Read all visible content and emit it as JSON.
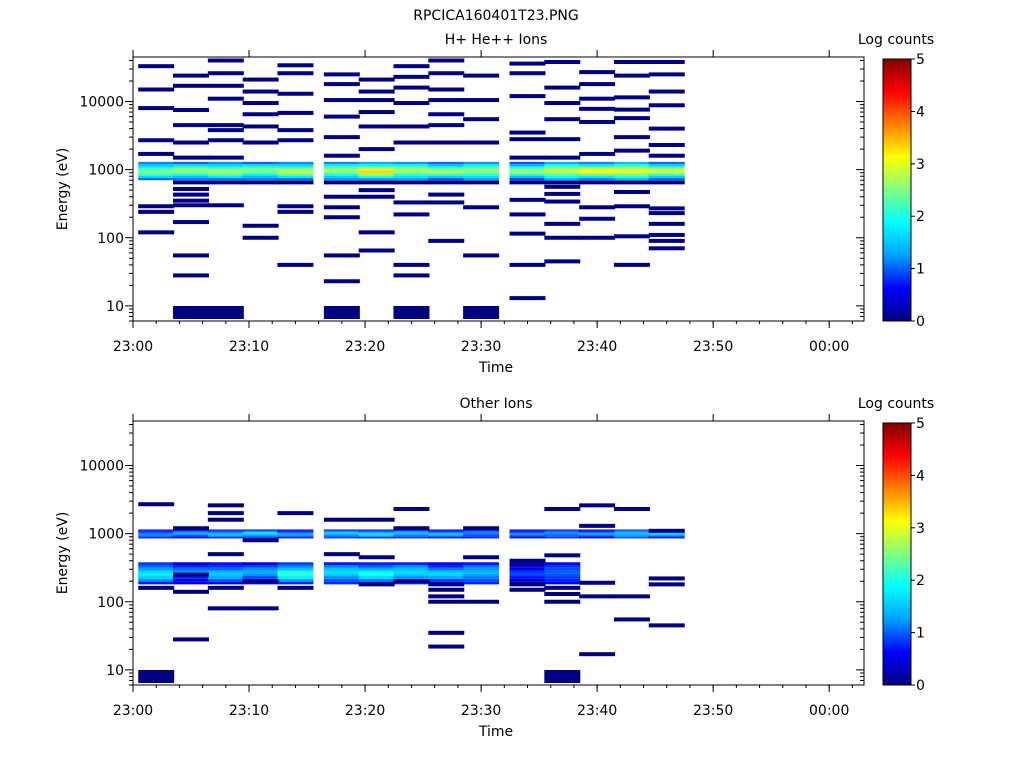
{
  "figure_title": "RPCICA160401T23.PNG",
  "colormap": [
    "#000080",
    "#0000ff",
    "#00a0ff",
    "#00ffff",
    "#80ff80",
    "#ffff00",
    "#ff8000",
    "#ff0000",
    "#800000"
  ],
  "chart_data": [
    {
      "type": "heatmap",
      "title": "H+ He++ Ions",
      "xlabel": "Time",
      "ylabel": "Energy (eV)",
      "x_axis": {
        "start": "23:00",
        "end": "00:03",
        "ticks": [
          "23:00",
          "23:10",
          "23:20",
          "23:30",
          "23:40",
          "23:50",
          "00:00"
        ]
      },
      "y_axis": {
        "scale": "log",
        "range": [
          6,
          45000
        ],
        "tick_labels": [
          "10",
          "100",
          "1000",
          "10000"
        ]
      },
      "colorbar": {
        "label": "Log counts",
        "range": [
          0,
          5
        ],
        "tick_labels": [
          "0",
          "1",
          "2",
          "3",
          "4",
          "5"
        ]
      },
      "time_bins": [
        "23:02",
        "23:05",
        "23:08",
        "23:11",
        "23:14",
        "23:18",
        "23:21",
        "23:24",
        "23:27",
        "23:30",
        "23:34",
        "23:37",
        "23:40",
        "23:43",
        "23:46",
        "23:49"
      ],
      "band": [
        {
          "e1": 700,
          "e2": 1300,
          "values": [
            2.7,
            2.8,
            2.9,
            2.7,
            3.0,
            2.9,
            3.5,
            3.0,
            2.8,
            2.9,
            2.7,
            3.2,
            3.3,
            3.4,
            3.0
          ]
        }
      ],
      "points": [
        {
          "t": 0,
          "e": [
            33000,
            15000,
            8000,
            2700,
            1700,
            290,
            240,
            120
          ]
        },
        {
          "t": 1,
          "e": [
            24000,
            17000,
            7500,
            4500,
            2500,
            1500,
            650,
            520,
            430,
            350,
            300,
            170,
            55,
            28,
            8
          ]
        },
        {
          "t": 2,
          "e": [
            40000,
            26000,
            17000,
            11000,
            4500,
            3800,
            2700,
            1500,
            650,
            300,
            8
          ]
        },
        {
          "t": 3,
          "e": [
            21000,
            14000,
            9500,
            6500,
            4300,
            2500,
            650,
            150,
            100
          ]
        },
        {
          "t": 4,
          "e": [
            34000,
            26000,
            13000,
            6800,
            3800,
            2700,
            650,
            290,
            240,
            40
          ]
        },
        {
          "t": 5,
          "e": [
            25000,
            18000,
            10500,
            6000,
            3000,
            1600,
            650,
            400,
            280,
            200,
            55,
            23,
            8
          ]
        },
        {
          "t": 6,
          "e": [
            21000,
            14000,
            10500,
            7000,
            4300,
            2000,
            650,
            500,
            400,
            120,
            65
          ]
        },
        {
          "t": 7,
          "e": [
            33000,
            23000,
            16000,
            9500,
            4300,
            2500,
            650,
            330,
            220,
            40,
            28,
            8
          ]
        },
        {
          "t": 8,
          "e": [
            40000,
            26000,
            15000,
            10500,
            6500,
            4500,
            2500,
            650,
            430,
            330,
            90
          ]
        },
        {
          "t": 9,
          "e": [
            24000,
            10500,
            5500,
            2500,
            650,
            280,
            55,
            8
          ]
        },
        {
          "t": 10,
          "e": [
            36000,
            26000,
            12000,
            3500,
            2800,
            1500,
            650,
            360,
            220,
            115,
            40,
            13
          ]
        },
        {
          "t": 11,
          "e": [
            38000,
            16000,
            9500,
            5500,
            2800,
            1500,
            650,
            560,
            440,
            340,
            160,
            100,
            45
          ]
        },
        {
          "t": 12,
          "e": [
            27000,
            18000,
            11000,
            7800,
            5000,
            1700,
            650,
            280,
            190,
            100
          ]
        },
        {
          "t": 13,
          "e": [
            38000,
            24000,
            11500,
            7600,
            5700,
            3000,
            1900,
            650,
            470,
            290,
            105,
            40
          ]
        },
        {
          "t": 14,
          "e": [
            38000,
            25000,
            14000,
            8800,
            4000,
            2300,
            1600,
            650,
            270,
            230,
            160,
            110,
            90,
            70
          ]
        }
      ]
    },
    {
      "type": "heatmap",
      "title": "Other Ions",
      "xlabel": "Time",
      "ylabel": "Energy (eV)",
      "x_axis": {
        "start": "23:00",
        "end": "00:03",
        "ticks": [
          "23:00",
          "23:10",
          "23:20",
          "23:30",
          "23:40",
          "23:50",
          "00:00"
        ]
      },
      "y_axis": {
        "scale": "log",
        "range": [
          6,
          45000
        ],
        "tick_labels": [
          "10",
          "100",
          "1000",
          "10000"
        ]
      },
      "colorbar": {
        "label": "Log counts",
        "range": [
          0,
          5
        ],
        "tick_labels": [
          "0",
          "1",
          "2",
          "3",
          "4",
          "5"
        ]
      },
      "time_bins": [
        "23:02",
        "23:05",
        "23:08",
        "23:11",
        "23:14",
        "23:18",
        "23:21",
        "23:24",
        "23:27",
        "23:30",
        "23:34",
        "23:37",
        "23:40",
        "23:43",
        "23:46",
        "23:49"
      ],
      "band": [
        {
          "e1": 850,
          "e2": 1150,
          "values": [
            1.3,
            1.4,
            1.6,
            1.8,
            1.4,
            1.7,
            1.8,
            1.6,
            1.5,
            1.3,
            1.2,
            1.4,
            1.3,
            1.7,
            1.6
          ]
        },
        {
          "e1": 180,
          "e2": 380,
          "values": [
            1.9,
            1.2,
            1.6,
            1.4,
            2.2,
            1.8,
            2.0,
            1.8,
            1.6,
            1.6,
            0.8,
            1.2,
            0,
            0,
            0
          ]
        }
      ],
      "points": [
        {
          "t": 0,
          "e": [
            2700,
            160,
            8
          ]
        },
        {
          "t": 1,
          "e": [
            1200,
            250,
            140,
            28
          ]
        },
        {
          "t": 2,
          "e": [
            2600,
            2000,
            1600,
            500,
            160,
            80
          ]
        },
        {
          "t": 3,
          "e": [
            800,
            200,
            80
          ]
        },
        {
          "t": 4,
          "e": [
            2000,
            160
          ]
        },
        {
          "t": 5,
          "e": [
            1600,
            500
          ]
        },
        {
          "t": 6,
          "e": [
            1600,
            450,
            180
          ]
        },
        {
          "t": 7,
          "e": [
            2300,
            1200,
            200
          ]
        },
        {
          "t": 8,
          "e": [
            180,
            150,
            120,
            100,
            35,
            22
          ]
        },
        {
          "t": 9,
          "e": [
            1200,
            450,
            100
          ]
        },
        {
          "t": 10,
          "e": [
            400,
            180,
            150
          ]
        },
        {
          "t": 11,
          "e": [
            2300,
            480,
            160,
            130,
            100,
            8
          ]
        },
        {
          "t": 12,
          "e": [
            2600,
            1300,
            190,
            120,
            17
          ]
        },
        {
          "t": 13,
          "e": [
            2300,
            120,
            55
          ]
        },
        {
          "t": 14,
          "e": [
            1100,
            220,
            180,
            45
          ]
        }
      ]
    }
  ]
}
